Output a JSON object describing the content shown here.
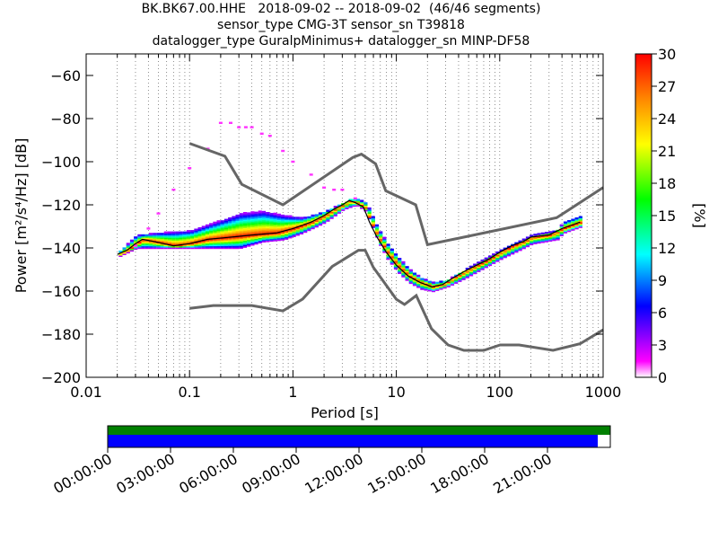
{
  "title_lines": [
    "BK.BK67.00.HHE   2018-09-02 -- 2018-09-02  (46/46 segments)",
    "sensor_type CMG-3T sensor_sn T39818",
    "datalogger_type GuralpMinimus+ datalogger_sn MINP-DF58"
  ],
  "chart_data": {
    "type": "heatmap",
    "x_scale": "log",
    "xlabel": "Period [s]",
    "ylabel": "Power [m²/s⁴/Hz] [dB]",
    "xlim": [
      0.01,
      1000
    ],
    "ylim": [
      -200,
      -50
    ],
    "x_tick_labels": [
      "0.01",
      "0.1",
      "1",
      "10",
      "100",
      "1000"
    ],
    "y_ticks": [
      -200,
      -180,
      -160,
      -140,
      -120,
      -100,
      -80,
      -60
    ],
    "grid": "vertical dotted",
    "colorbar": {
      "label": "[%]",
      "min": 0,
      "max": 30,
      "ticks": [
        0,
        3,
        6,
        9,
        12,
        15,
        18,
        21,
        24,
        27,
        30
      ]
    },
    "psd_mode": [
      [
        0.02,
        -143
      ],
      [
        0.025,
        -141
      ],
      [
        0.03,
        -138
      ],
      [
        0.035,
        -136
      ],
      [
        0.045,
        -137
      ],
      [
        0.07,
        -139
      ],
      [
        0.1,
        -138
      ],
      [
        0.15,
        -136
      ],
      [
        0.25,
        -135
      ],
      [
        0.4,
        -134
      ],
      [
        0.7,
        -133
      ],
      [
        1.0,
        -131
      ],
      [
        1.5,
        -128
      ],
      [
        2.0,
        -125
      ],
      [
        2.5,
        -122
      ],
      [
        3.0,
        -120
      ],
      [
        3.5,
        -118
      ],
      [
        4.0,
        -119
      ],
      [
        4.8,
        -121
      ],
      [
        5.5,
        -128
      ],
      [
        6.5,
        -135
      ],
      [
        8.0,
        -142
      ],
      [
        10,
        -148
      ],
      [
        13,
        -153
      ],
      [
        17,
        -156
      ],
      [
        22,
        -158
      ],
      [
        28,
        -157
      ],
      [
        35,
        -154
      ],
      [
        45,
        -151
      ],
      [
        60,
        -148
      ],
      [
        80,
        -145
      ],
      [
        100,
        -142
      ],
      [
        130,
        -139
      ],
      [
        170,
        -137
      ],
      [
        200,
        -135
      ],
      [
        300,
        -134
      ],
      [
        400,
        -131
      ],
      [
        600,
        -128
      ]
    ],
    "psd_upper_spread": [
      [
        0.02,
        -142
      ],
      [
        0.03,
        -134
      ],
      [
        0.05,
        -133
      ],
      [
        0.1,
        -132
      ],
      [
        0.2,
        -127
      ],
      [
        0.3,
        -124
      ],
      [
        0.5,
        -123
      ],
      [
        0.8,
        -125
      ],
      [
        1.2,
        -126
      ],
      [
        2.0,
        -123
      ],
      [
        3.0,
        -119
      ],
      [
        4.0,
        -117
      ],
      [
        5.0,
        -119
      ],
      [
        6.5,
        -131
      ],
      [
        8.0,
        -138
      ],
      [
        10,
        -144
      ],
      [
        13,
        -150
      ],
      [
        17,
        -154
      ],
      [
        22,
        -156
      ],
      [
        30,
        -155
      ],
      [
        45,
        -150
      ],
      [
        70,
        -145
      ],
      [
        100,
        -141
      ],
      [
        150,
        -137
      ],
      [
        200,
        -134
      ],
      [
        350,
        -132
      ],
      [
        400,
        -128
      ],
      [
        600,
        -125
      ]
    ],
    "psd_lower_spread": [
      [
        0.02,
        -144
      ],
      [
        0.03,
        -140
      ],
      [
        0.05,
        -140
      ],
      [
        0.1,
        -140
      ],
      [
        0.2,
        -140
      ],
      [
        0.3,
        -140
      ],
      [
        0.5,
        -137
      ],
      [
        0.8,
        -136
      ],
      [
        1.2,
        -133
      ],
      [
        2.0,
        -128
      ],
      [
        3.0,
        -122
      ],
      [
        4.0,
        -120
      ],
      [
        5.0,
        -123
      ],
      [
        6.5,
        -137
      ],
      [
        8.0,
        -145
      ],
      [
        10,
        -151
      ],
      [
        13,
        -156
      ],
      [
        17,
        -159
      ],
      [
        22,
        -160
      ],
      [
        30,
        -158
      ],
      [
        45,
        -154
      ],
      [
        70,
        -149
      ],
      [
        100,
        -145
      ],
      [
        150,
        -141
      ],
      [
        200,
        -138
      ],
      [
        350,
        -136
      ],
      [
        400,
        -133
      ],
      [
        600,
        -130
      ]
    ],
    "outlier_curve": [
      [
        0.03,
        -139
      ],
      [
        0.04,
        -131
      ],
      [
        0.05,
        -124
      ],
      [
        0.07,
        -113
      ],
      [
        0.1,
        -103
      ],
      [
        0.15,
        -94
      ],
      [
        0.2,
        -82
      ],
      [
        0.25,
        -82
      ],
      [
        0.3,
        -84
      ],
      [
        0.35,
        -84
      ],
      [
        0.4,
        -84
      ],
      [
        0.5,
        -87
      ],
      [
        0.6,
        -88
      ],
      [
        0.8,
        -95
      ],
      [
        1.0,
        -100
      ],
      [
        1.5,
        -106
      ],
      [
        2.0,
        -112
      ],
      [
        2.5,
        -113
      ],
      [
        3.0,
        -113
      ],
      [
        4.0,
        -117
      ]
    ],
    "new_high_noise_model": [
      [
        0.1,
        -91.5
      ],
      [
        0.22,
        -97.4
      ],
      [
        0.32,
        -110.5
      ],
      [
        0.8,
        -120
      ],
      [
        3.8,
        -98
      ],
      [
        4.6,
        -96.5
      ],
      [
        6.3,
        -101
      ],
      [
        7.9,
        -113.5
      ],
      [
        15.4,
        -120
      ],
      [
        20,
        -138.5
      ],
      [
        354.8,
        -126
      ],
      [
        1000,
        -112
      ]
    ],
    "new_low_noise_model": [
      [
        0.1,
        -168
      ],
      [
        0.17,
        -166.7
      ],
      [
        0.4,
        -166.7
      ],
      [
        0.8,
        -169.2
      ],
      [
        1.24,
        -163.7
      ],
      [
        2.4,
        -148.6
      ],
      [
        4.3,
        -141.1
      ],
      [
        5.0,
        -141.1
      ],
      [
        6.0,
        -149
      ],
      [
        10,
        -163.8
      ],
      [
        12,
        -166.2
      ],
      [
        15.6,
        -162.1
      ],
      [
        21.9,
        -177.5
      ],
      [
        31.6,
        -185
      ],
      [
        45,
        -187.5
      ],
      [
        70,
        -187.5
      ],
      [
        101,
        -185
      ],
      [
        154,
        -185
      ],
      [
        328,
        -187.5
      ],
      [
        600,
        -184.4
      ],
      [
        1000,
        -178
      ]
    ]
  },
  "timeline": {
    "time_labels": [
      "00:00:00",
      "03:00:00",
      "06:00:00",
      "09:00:00",
      "12:00:00",
      "15:00:00",
      "18:00:00",
      "21:00:00"
    ],
    "gap_free_fraction": 1.0,
    "segment_coverage_fraction": 0.975,
    "top_bar_color": "#008000",
    "bottom_bar_color": "#0000ff"
  },
  "colors": {
    "noise_model": "#666666",
    "mode_line": "#000000"
  }
}
